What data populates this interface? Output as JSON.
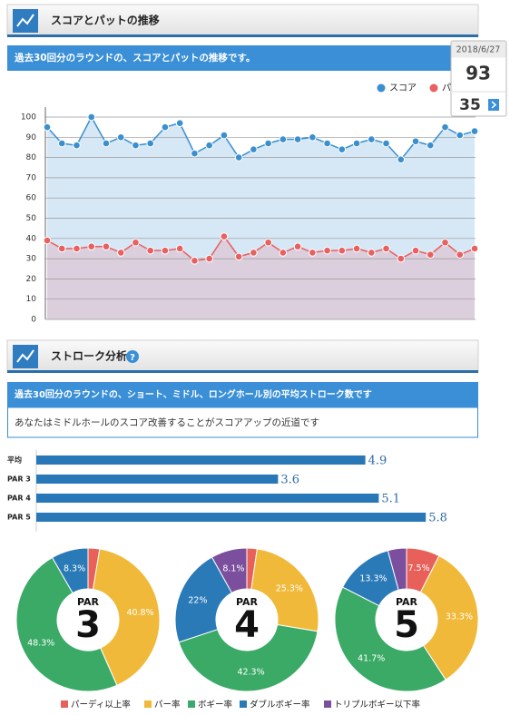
{
  "sections": [
    {
      "title": "スコアとパットの推移",
      "description": "過去30回分のラウンドの、スコアとパットの推移です。"
    },
    {
      "title": "ストローク分析",
      "description": "過去30回分のラウンドの、ショート、ミドル、ロングホール別の平均ストローク数です",
      "message": "あなたはミドルホールのスコア改善することがスコアアップの近道です"
    }
  ],
  "chart_data": [
    {
      "type": "line",
      "ylim": [
        0,
        100
      ],
      "yticks": [
        0,
        10,
        20,
        30,
        40,
        50,
        60,
        70,
        80,
        90,
        100
      ],
      "grid": true,
      "tooltip": {
        "date": "2018/6/27"
      },
      "series": [
        {
          "name": "スコア",
          "color": "#3a8fcf",
          "fill": "#d6e7f5",
          "values": [
            95,
            87,
            86,
            100,
            87,
            90,
            86,
            87,
            95,
            97,
            82,
            86,
            91,
            80,
            84,
            87,
            89,
            89,
            90,
            87,
            84,
            87,
            89,
            87,
            79,
            88,
            86,
            95,
            91,
            93
          ]
        },
        {
          "name": "パット",
          "color": "#e8605f",
          "fill": "#dccfdd",
          "values": [
            39,
            35,
            35,
            36,
            36,
            33,
            38,
            34,
            34,
            35,
            29,
            30,
            41,
            31,
            33,
            38,
            33,
            36,
            33,
            34,
            34,
            35,
            33,
            35,
            30,
            34,
            32,
            38,
            32,
            35
          ]
        }
      ]
    },
    {
      "type": "bar",
      "orientation": "horizontal",
      "categories": [
        "平均",
        "PAR 3",
        "PAR 4",
        "PAR 5"
      ],
      "values": [
        4.9,
        3.6,
        5.1,
        5.8
      ],
      "xlim": [
        0,
        6.5
      ],
      "color": "#2878b8"
    },
    {
      "type": "pie",
      "categories": [
        "パーディ以上率",
        "パー率",
        "ボギー率",
        "ダブルボギー率",
        "トリプルボギー以下率"
      ],
      "colors": [
        "#e8605a",
        "#f0b93a",
        "#3aaa66",
        "#2a7ab8",
        "#7b4f9d"
      ],
      "pies": [
        {
          "title": "PAR",
          "number": "3",
          "values": [
            2.6,
            40.8,
            48.3,
            8.3,
            0
          ],
          "value_labels": [
            null,
            "40.8%",
            "48.3%",
            "8.3%",
            null
          ]
        },
        {
          "title": "PAR",
          "number": "4",
          "values": [
            2.3,
            25.3,
            42.3,
            22,
            8.1
          ],
          "value_labels": [
            null,
            "25.3%",
            "42.3%",
            "22%",
            "8.1%"
          ]
        },
        {
          "title": "PAR",
          "number": "5",
          "values": [
            7.5,
            33.3,
            41.7,
            13.3,
            4.2
          ],
          "value_labels": [
            "7.5%",
            "33.3%",
            "41.7%",
            "13.3%",
            null
          ]
        }
      ]
    }
  ]
}
